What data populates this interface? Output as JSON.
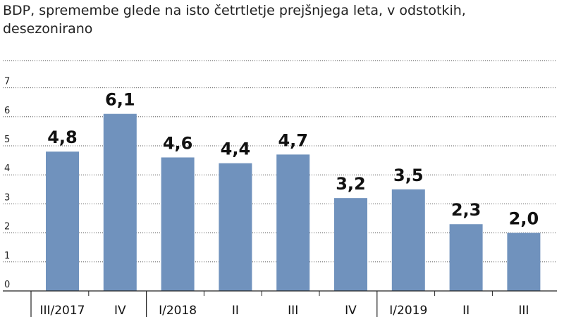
{
  "chart_data": {
    "type": "bar",
    "title_lines": [
      "BDP, spremembe glede na isto četrtletje prejšnjega leta, v odstotkih,",
      "desezonirano"
    ],
    "categories": [
      "III/2017",
      "IV",
      "I/2018",
      "II",
      "III",
      "IV",
      "I/2019",
      "II",
      "III"
    ],
    "values": [
      4.8,
      6.1,
      4.6,
      4.4,
      4.7,
      3.2,
      3.5,
      2.3,
      2.0
    ],
    "value_labels": [
      "4,8",
      "6,1",
      "4,6",
      "4,4",
      "4,7",
      "3,2",
      "3,5",
      "2,3",
      "2,0"
    ],
    "yticks": [
      "0",
      "1",
      "2",
      "3",
      "4",
      "5",
      "6",
      "7"
    ],
    "ylim": [
      0,
      7.7
    ],
    "grid": true,
    "bar_color": "#7092bd",
    "separators_after_index": [
      0,
      1,
      5
    ]
  }
}
